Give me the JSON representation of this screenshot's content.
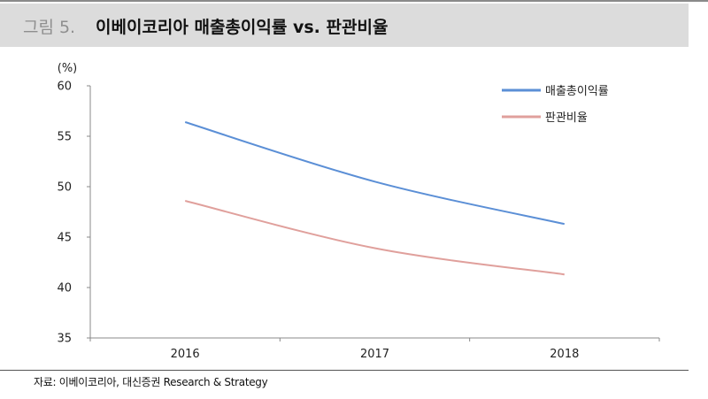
{
  "header": {
    "figure_label": "그림",
    "figure_number": "5.",
    "title": "이베이코리아 매출총이익률 vs. 판관비율"
  },
  "chart_data": {
    "type": "line",
    "unit_label": "(%)",
    "x": [
      "2016",
      "2017",
      "2018"
    ],
    "ylim": [
      35,
      60
    ],
    "yticks": [
      35,
      40,
      45,
      50,
      55,
      60
    ],
    "grid": false,
    "legend_position": "top-right",
    "series": [
      {
        "name": "매출총이익률",
        "color": "#5b8fd6",
        "values": [
          56.4,
          50.5,
          46.3
        ]
      },
      {
        "name": "판관비율",
        "color": "#e0a09c",
        "values": [
          48.6,
          43.9,
          41.3
        ]
      }
    ]
  },
  "footer": {
    "source": "자료: 이베이코리아, 대신증권 Research & Strategy"
  }
}
